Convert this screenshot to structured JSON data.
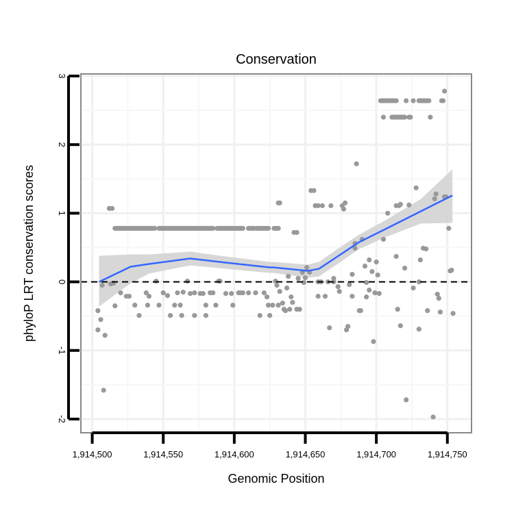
{
  "chart_data": {
    "type": "scatter",
    "title": "Conservation",
    "xlabel": "Genomic Position",
    "ylabel": "phyloP LRT conservation scores",
    "xlim": [
      1914492,
      1914767
    ],
    "ylim": [
      -2.2,
      3.03
    ],
    "x_ticks": [
      1914500,
      1914550,
      1914600,
      1914650,
      1914700,
      1914750
    ],
    "x_tick_labels": [
      "1,914,500",
      "1,914,550",
      "1,914,600",
      "1,914,650",
      "1,914,700",
      "1,914,750"
    ],
    "y_ticks": [
      -2,
      -1,
      0,
      1,
      2,
      3
    ],
    "y_tick_labels": [
      "-2",
      "-1",
      "0",
      "1",
      "2",
      "3"
    ],
    "grid": true,
    "reference_line": {
      "y": 0,
      "style": "dashed",
      "color": "#000000"
    },
    "colors": {
      "points": "#999999",
      "smooth": "#3366FF",
      "ribbon": "#d3d3d3",
      "panel_border": "#888888",
      "grid": "#f3f3f3"
    },
    "bands": [
      {
        "y": 0.78,
        "x_from": 1914516,
        "x_to": 1914630,
        "gaps": [
          [
            1914544,
            1914547
          ],
          [
            1914585,
            1914588
          ],
          [
            1914606,
            1914610
          ],
          [
            1914614,
            1914616
          ],
          [
            1914624,
            1914628
          ]
        ]
      },
      {
        "y": 2.64,
        "x_segments": [
          [
            1914703,
            1914714
          ],
          [
            1914721,
            1914721
          ],
          [
            1914726,
            1914726
          ],
          [
            1914730,
            1914737
          ],
          [
            1914746,
            1914747
          ]
        ]
      },
      {
        "y": 2.4,
        "x_segments": [
          [
            1914705,
            1914705
          ],
          [
            1914711,
            1914720
          ],
          [
            1914723,
            1914724
          ],
          [
            1914738,
            1914738
          ]
        ]
      }
    ],
    "points": [
      [
        1914504,
        -0.42
      ],
      [
        1914504,
        -0.7
      ],
      [
        1914506,
        -0.55
      ],
      [
        1914507,
        -0.05
      ],
      [
        1914508,
        -1.58
      ],
      [
        1914509,
        -0.78
      ],
      [
        1914512,
        1.07
      ],
      [
        1914514,
        1.07
      ],
      [
        1914513,
        -0.03
      ],
      [
        1914515,
        -0.02
      ],
      [
        1914516,
        -0.35
      ],
      [
        1914520,
        -0.16
      ],
      [
        1914524,
        -0.21
      ],
      [
        1914526,
        -0.21
      ],
      [
        1914530,
        -0.34
      ],
      [
        1914533,
        -0.49
      ],
      [
        1914538,
        -0.16
      ],
      [
        1914540,
        -0.21
      ],
      [
        1914539,
        -0.34
      ],
      [
        1914545,
        0.01
      ],
      [
        1914547,
        -0.34
      ],
      [
        1914550,
        -0.16
      ],
      [
        1914553,
        -0.2
      ],
      [
        1914555,
        -0.49
      ],
      [
        1914558,
        -0.34
      ],
      [
        1914560,
        -0.16
      ],
      [
        1914562,
        -0.34
      ],
      [
        1914563,
        -0.49
      ],
      [
        1914564,
        -0.15
      ],
      [
        1914567,
        0.01
      ],
      [
        1914569,
        -0.17
      ],
      [
        1914572,
        -0.49
      ],
      [
        1914572,
        -0.16
      ],
      [
        1914576,
        -0.17
      ],
      [
        1914578,
        -0.17
      ],
      [
        1914580,
        -0.34
      ],
      [
        1914580,
        -0.49
      ],
      [
        1914583,
        -0.16
      ],
      [
        1914585,
        -0.16
      ],
      [
        1914587,
        -0.34
      ],
      [
        1914589,
        0.01
      ],
      [
        1914590,
        0.01
      ],
      [
        1914594,
        -0.17
      ],
      [
        1914598,
        -0.17
      ],
      [
        1914599,
        -0.34
      ],
      [
        1914603,
        -0.16
      ],
      [
        1914604,
        -0.16
      ],
      [
        1914606,
        -0.16
      ],
      [
        1914610,
        -0.16
      ],
      [
        1914615,
        -0.16
      ],
      [
        1914618,
        -0.49
      ],
      [
        1914621,
        -0.16
      ],
      [
        1914623,
        -0.22
      ],
      [
        1914624,
        -0.34
      ],
      [
        1914625,
        -0.49
      ],
      [
        1914627,
        -0.34
      ],
      [
        1914629,
        0.01
      ],
      [
        1914630,
        -0.05
      ],
      [
        1914631,
        -0.34
      ],
      [
        1914632,
        -0.14
      ],
      [
        1914634,
        -0.31
      ],
      [
        1914635,
        -0.4
      ],
      [
        1914636,
        -0.42
      ],
      [
        1914637,
        -0.09
      ],
      [
        1914638,
        0.08
      ],
      [
        1914639,
        -0.4
      ],
      [
        1914640,
        -0.22
      ],
      [
        1914641,
        -0.3
      ],
      [
        1914644,
        -0.4
      ],
      [
        1914646,
        -0.4
      ],
      [
        1914631,
        1.15
      ],
      [
        1914632,
        1.15
      ],
      [
        1914631,
        0.78
      ],
      [
        1914642,
        0.72
      ],
      [
        1914644,
        0.72
      ],
      [
        1914645,
        0.05
      ],
      [
        1914648,
        0.14
      ],
      [
        1914649,
        -0.01
      ],
      [
        1914650,
        0.06
      ],
      [
        1914651,
        0.21
      ],
      [
        1914653,
        0.14
      ],
      [
        1914654,
        1.33
      ],
      [
        1914656,
        1.33
      ],
      [
        1914657,
        1.11
      ],
      [
        1914659,
        1.11
      ],
      [
        1914662,
        1.11
      ],
      [
        1914659,
        0.0
      ],
      [
        1914659,
        -0.21
      ],
      [
        1914661,
        0.0
      ],
      [
        1914664,
        -0.21
      ],
      [
        1914667,
        -0.67
      ],
      [
        1914668,
        1.11
      ],
      [
        1914666,
        0.0
      ],
      [
        1914670,
        0.0
      ],
      [
        1914670,
        0.05
      ],
      [
        1914673,
        -0.07
      ],
      [
        1914674,
        -0.14
      ],
      [
        1914676,
        1.11
      ],
      [
        1914677,
        1.06
      ],
      [
        1914678,
        1.15
      ],
      [
        1914680,
        -0.65
      ],
      [
        1914679,
        -0.7
      ],
      [
        1914681,
        -0.04
      ],
      [
        1914683,
        -0.21
      ],
      [
        1914683,
        0.11
      ],
      [
        1914685,
        0.56
      ],
      [
        1914686,
        1.72
      ],
      [
        1914685,
        0.49
      ],
      [
        1914688,
        -0.42
      ],
      [
        1914689,
        -0.42
      ],
      [
        1914690,
        0.62
      ],
      [
        1914692,
        0.23
      ],
      [
        1914693,
        -0.22
      ],
      [
        1914693,
        -0.01
      ],
      [
        1914695,
        -0.12
      ],
      [
        1914695,
        0.32
      ],
      [
        1914697,
        0.15
      ],
      [
        1914698,
        -0.87
      ],
      [
        1914699,
        -0.16
      ],
      [
        1914700,
        0.29
      ],
      [
        1914702,
        -0.17
      ],
      [
        1914701,
        0.1
      ],
      [
        1914705,
        0.62
      ],
      [
        1914708,
        1.0
      ],
      [
        1914714,
        1.11
      ],
      [
        1914716,
        1.11
      ],
      [
        1914717,
        1.13
      ],
      [
        1914714,
        0.37
      ],
      [
        1914715,
        -0.4
      ],
      [
        1914717,
        -0.64
      ],
      [
        1914720,
        0.2
      ],
      [
        1914721,
        -1.72
      ],
      [
        1914723,
        1.12
      ],
      [
        1914726,
        -0.09
      ],
      [
        1914728,
        1.37
      ],
      [
        1914730,
        -0.69
      ],
      [
        1914730,
        0.0
      ],
      [
        1914731,
        0.32
      ],
      [
        1914733,
        0.49
      ],
      [
        1914735,
        0.48
      ],
      [
        1914736,
        -0.42
      ],
      [
        1914740,
        -1.97
      ],
      [
        1914741,
        1.21
      ],
      [
        1914742,
        1.28
      ],
      [
        1914743,
        -0.18
      ],
      [
        1914744,
        -0.24
      ],
      [
        1914745,
        -0.44
      ],
      [
        1914748,
        2.78
      ],
      [
        1914748,
        1.24
      ],
      [
        1914749,
        1.24
      ],
      [
        1914751,
        0.78
      ],
      [
        1914752,
        0.16
      ],
      [
        1914753,
        0.17
      ],
      [
        1914754,
        -0.46
      ]
    ],
    "smooth": {
      "x": [
        1914504.8,
        1914527,
        1914540,
        1914569,
        1914594,
        1914625,
        1914627.5,
        1914651.5,
        1914659.6,
        1914672,
        1914688,
        1914707.5,
        1914731.5,
        1914753.6
      ],
      "y": [
        0.0,
        0.22,
        0.26,
        0.34,
        0.28,
        0.21,
        0.21,
        0.16,
        0.19,
        0.36,
        0.58,
        0.78,
        1.03,
        1.26
      ],
      "lower": [
        -0.36,
        -0.02,
        0.12,
        0.24,
        0.19,
        0.13,
        0.13,
        0.06,
        0.08,
        0.25,
        0.48,
        0.66,
        0.85,
        0.86
      ],
      "upper": [
        0.38,
        0.4,
        0.4,
        0.44,
        0.37,
        0.29,
        0.29,
        0.25,
        0.29,
        0.47,
        0.69,
        0.91,
        1.21,
        1.64
      ]
    }
  }
}
